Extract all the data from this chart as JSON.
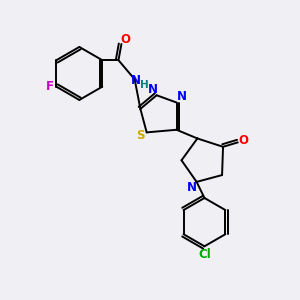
{
  "background_color": "#f0f0f4",
  "bond_color": "#000000",
  "atom_colors": {
    "F": "#cc00cc",
    "O": "#ff0000",
    "N": "#0000ff",
    "H": "#008080",
    "S": "#ccaa00",
    "Cl": "#00aa00"
  },
  "figsize": [
    3.0,
    3.0
  ],
  "dpi": 100
}
